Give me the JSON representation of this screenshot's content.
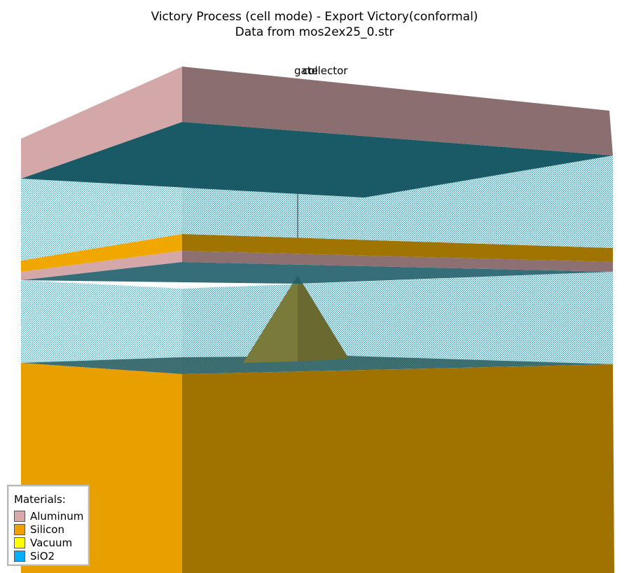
{
  "header": {
    "title": "Victory Process  (cell mode) - Export Victory(conformal)",
    "subtitle": "Data from mos2ex25_0.str"
  },
  "electrode_labels": [
    "gate",
    "collector"
  ],
  "legend": {
    "title": "Materials:",
    "items": [
      {
        "name": "Aluminum",
        "color": "#d9a8a8"
      },
      {
        "name": "Silicon",
        "color": "#f0a000"
      },
      {
        "name": "Vacuum",
        "color": "#ffff00"
      },
      {
        "name": "SiO2",
        "color": "#00b0ff"
      }
    ]
  }
}
